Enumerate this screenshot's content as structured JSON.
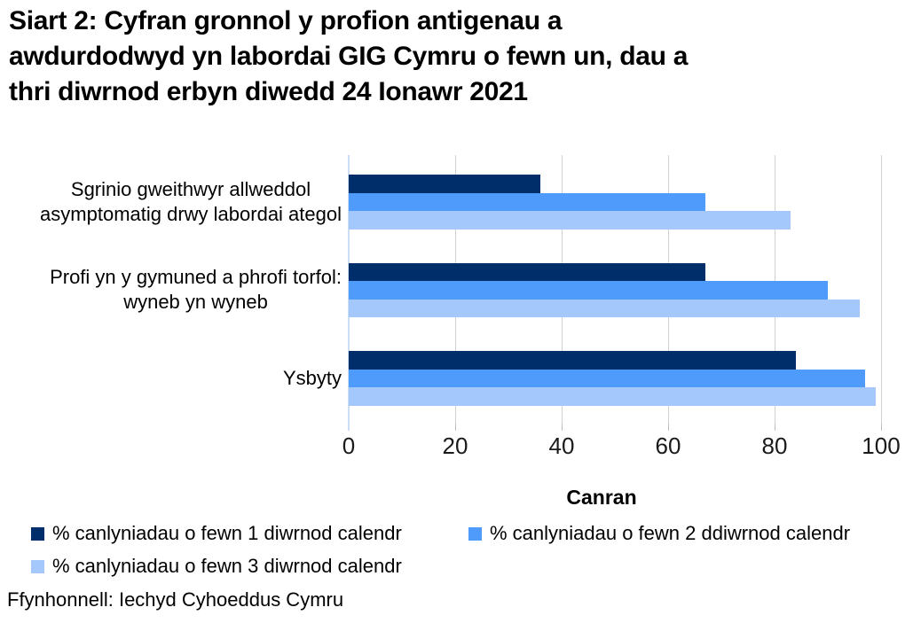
{
  "chart_data": {
    "type": "bar",
    "orientation": "horizontal",
    "title": "Siart 2: Cyfran gronnol y profion antigenau a\nawdurdodwyd yn labordai GIG Cymru o fewn un, dau a\nthri diwrnod erbyn diwedd 24 Ionawr 2021",
    "categories": [
      "Sgrinio gweithwyr allweddol\nasymptomatig drwy labordai ategol",
      "Profi yn y gymuned a phrofi torfol:\nwyneb yn wyneb",
      "Ysbyty"
    ],
    "series": [
      {
        "name": "% canlyniadau o fewn 1 diwrnod calendr",
        "color": "#002E6B",
        "values": [
          36,
          67,
          84
        ]
      },
      {
        "name": "% canlyniadau o fewn 2 ddiwrnod calendr",
        "color": "#4F9BFB",
        "values": [
          67,
          90,
          97
        ]
      },
      {
        "name": "% canlyniadau o fewn 3 diwrnod calendr",
        "color": "#A5C8FC",
        "values": [
          83,
          96,
          99
        ]
      }
    ],
    "xlabel": "Canran",
    "xlim": [
      0,
      100
    ],
    "xticks": [
      0,
      20,
      40,
      60,
      80,
      100
    ],
    "grid": true,
    "legend_position": "bottom",
    "colors": {
      "gridline": "#D2D2D2",
      "axis_line": "#CBDEF3",
      "tick": "#BFBFBF",
      "background": "#FFFFFF"
    }
  },
  "source_note": "Ffynhonnell: Iechyd Cyhoeddus Cymru"
}
